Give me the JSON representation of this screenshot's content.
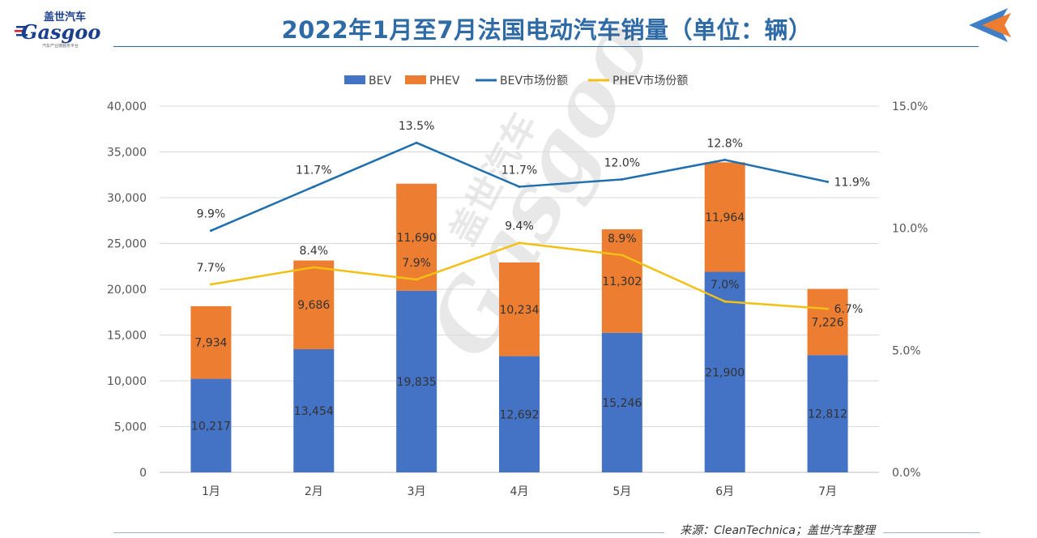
{
  "header": {
    "title": "2022年1月至7月法国电动汽车销量（单位：辆）",
    "logo_cn": "盖世汽车",
    "logo_en": "Gasgoo",
    "logo_tag": "汽车产业链服务平台",
    "watermark_cn": "盖世汽车",
    "watermark_en": "Gasgoo"
  },
  "footer": {
    "source": "来源：CleanTechnica；盖世汽车整理"
  },
  "colors": {
    "bev": "#4472c4",
    "phev": "#ed7d31",
    "bev_share": "#1f6faf",
    "phev_share": "#f2c014",
    "title": "#2d6aa6",
    "grid": "#d9d9d9"
  },
  "chart_data": {
    "type": "bar",
    "stacked": true,
    "title": "2022年1月至7月法国电动汽车销量（单位：辆）",
    "categories": [
      "1月",
      "2月",
      "3月",
      "4月",
      "5月",
      "6月",
      "7月"
    ],
    "series": [
      {
        "name": "BEV",
        "type": "bar",
        "axis": "left",
        "color": "#4472c4",
        "values": [
          10217,
          13454,
          19835,
          12692,
          15246,
          21900,
          12812
        ],
        "labels": [
          "10,217",
          "13,454",
          "19,835",
          "12,692",
          "15,246",
          "21,900",
          "12,812"
        ]
      },
      {
        "name": "PHEV",
        "type": "bar",
        "axis": "left",
        "color": "#ed7d31",
        "values": [
          7934,
          9686,
          11690,
          10234,
          11302,
          11964,
          7226
        ],
        "labels": [
          "7,934",
          "9,686",
          "11,690",
          "10,234",
          "11,302",
          "11,964",
          "7,226"
        ]
      },
      {
        "name": "BEV市场份额",
        "type": "line",
        "axis": "right",
        "color": "#1f6faf",
        "values": [
          9.9,
          11.7,
          13.5,
          11.7,
          12.0,
          12.8,
          11.9
        ],
        "labels": [
          "9.9%",
          "11.7%",
          "13.5%",
          "11.7%",
          "12.0%",
          "12.8%",
          "11.9%"
        ]
      },
      {
        "name": "PHEV市场份额",
        "type": "line",
        "axis": "right",
        "color": "#f2c014",
        "values": [
          7.7,
          8.4,
          7.9,
          9.4,
          8.9,
          7.0,
          6.7
        ],
        "labels": [
          "7.7%",
          "8.4%",
          "7.9%",
          "9.4%",
          "8.9%",
          "7.0%",
          "6.7%"
        ]
      }
    ],
    "y_left": {
      "min": 0,
      "max": 40000,
      "ticks": [
        "0",
        "5,000",
        "10,000",
        "15,000",
        "20,000",
        "25,000",
        "30,000",
        "35,000",
        "40,000"
      ]
    },
    "y_right": {
      "min": 0,
      "max": 15,
      "ticks": [
        "0.0%",
        "5.0%",
        "10.0%",
        "15.0%"
      ]
    },
    "legend": {
      "position": "top",
      "entries": [
        "BEV",
        "PHEV",
        "BEV市场份额",
        "PHEV市场份额"
      ]
    },
    "grid": true
  }
}
